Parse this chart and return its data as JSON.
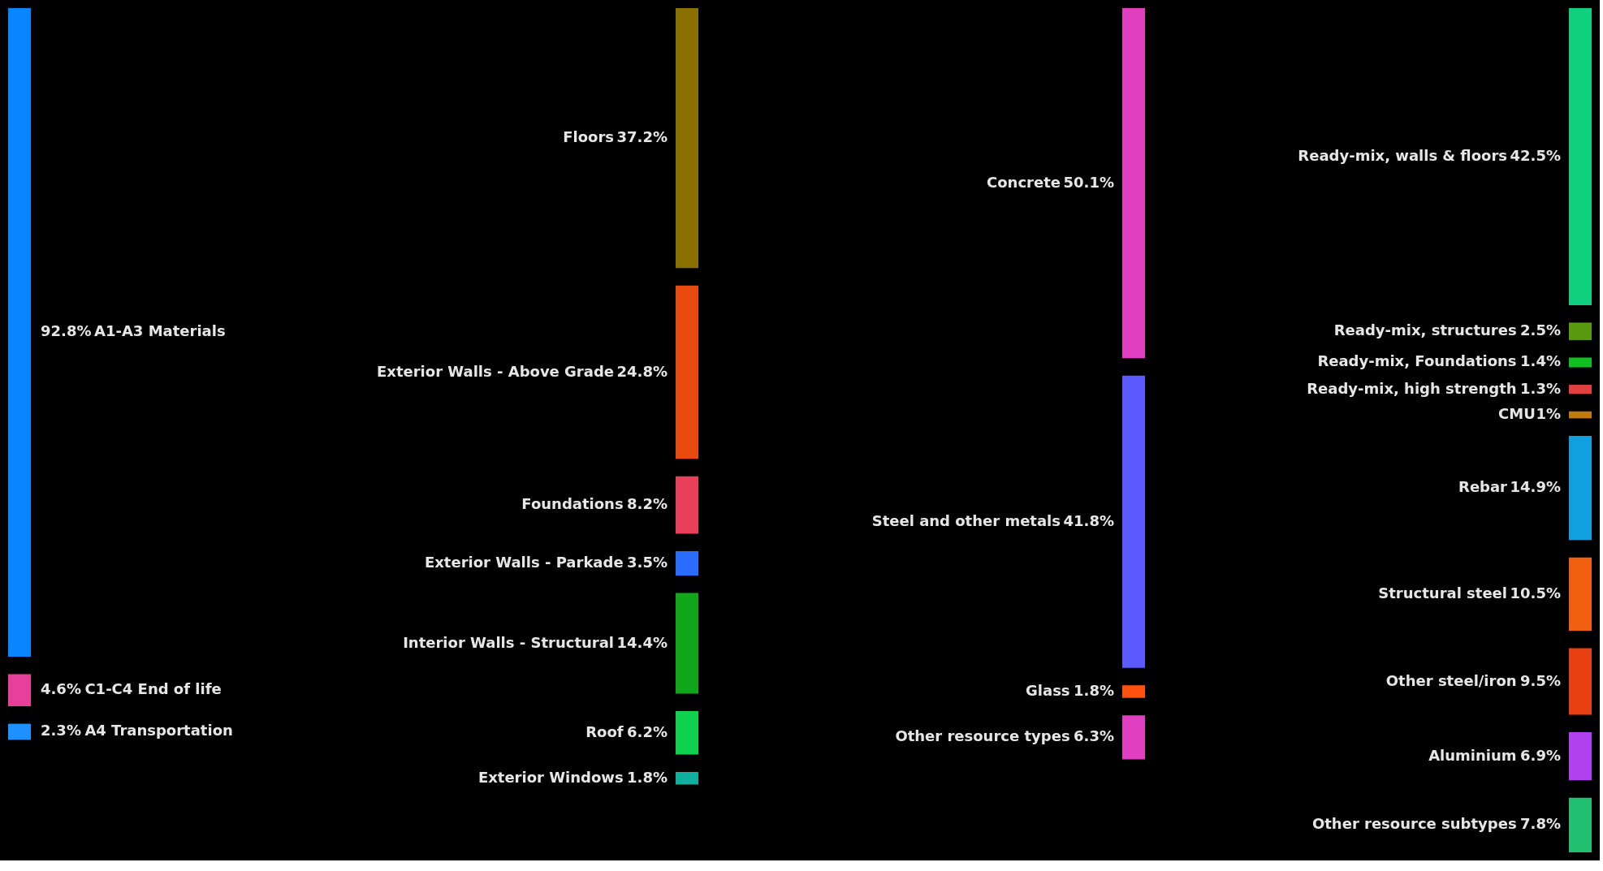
{
  "chart_data": [
    {
      "type": "other",
      "categories": [
        "A1-A3 Materials",
        "C1-C4 End of life",
        "A4 Transportation"
      ],
      "values": [
        92.8,
        4.6,
        2.3
      ],
      "colors": [
        "#0a84ff",
        "#e8409a",
        "#1e90ff"
      ],
      "value_labels": [
        "92.8%",
        "4.6%",
        "2.3%"
      ]
    },
    {
      "type": "other",
      "categories": [
        "Floors",
        "Exterior Walls - Above Grade",
        "Foundations",
        "Exterior Walls - Parkade",
        "Interior Walls - Structural",
        "Roof",
        "Exterior Windows"
      ],
      "values": [
        37.2,
        24.8,
        8.2,
        3.5,
        14.4,
        6.2,
        1.8
      ],
      "colors": [
        "#8a7000",
        "#e84a10",
        "#e8405a",
        "#2a6cff",
        "#10a81a",
        "#10d050",
        "#10b0a0"
      ],
      "value_labels": [
        "37.2%",
        "24.8%",
        "8.2%",
        "3.5%",
        "14.4%",
        "6.2%",
        "1.8%"
      ]
    },
    {
      "type": "other",
      "categories": [
        "Concrete",
        "Steel and other metals",
        "Glass",
        "Other resource types"
      ],
      "values": [
        50.1,
        41.8,
        1.8,
        6.3
      ],
      "colors": [
        "#e040c0",
        "#5a5aff",
        "#ff5010",
        "#e040c0"
      ],
      "value_labels": [
        "50.1%",
        "41.8%",
        "1.8%",
        "6.3%"
      ]
    },
    {
      "type": "other",
      "categories": [
        "Ready-mix, walls & floors",
        "Ready-mix, structures",
        "Ready-mix, Foundations",
        "Ready-mix, high strength",
        "CMU",
        "Rebar",
        "Structural steel",
        "Other steel/iron",
        "Aluminium",
        "Other resource subtypes"
      ],
      "values": [
        42.5,
        2.5,
        1.4,
        1.3,
        1,
        14.9,
        10.5,
        9.5,
        6.9,
        7.8
      ],
      "colors": [
        "#10d080",
        "#5a9a10",
        "#10c020",
        "#e04040",
        "#c07a10",
        "#10a0e0",
        "#f06010",
        "#e84010",
        "#b040f0",
        "#20c070"
      ],
      "value_labels": [
        "42.5%",
        "2.5%",
        "1.4%",
        "1.3%",
        "1%",
        "14.9%",
        "10.5%",
        "9.5%",
        "6.9%",
        "7.8%"
      ]
    }
  ]
}
